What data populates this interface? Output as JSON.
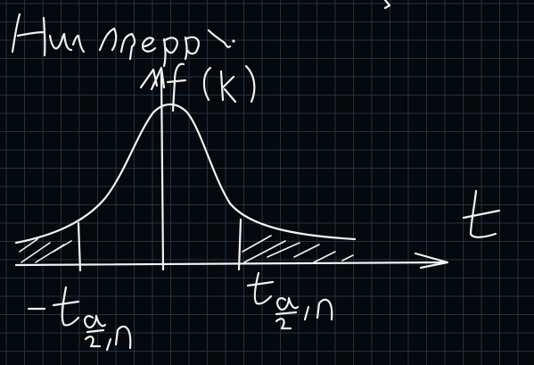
{
  "board": {
    "background": "#05080c",
    "grid_color": "#1d3347",
    "ink_color": "#f2f2f2"
  },
  "heading": "На черт.",
  "axis_label_y": "f(x)",
  "axis_label_x": "t",
  "left_critical_label": {
    "sign": "-",
    "main": "t",
    "sub_top": "α",
    "sub_bottom": "2",
    "sub_tail": ",n"
  },
  "right_critical_label": {
    "main": "t",
    "sub_top": "α",
    "sub_bottom": "2",
    "sub_tail": ",n"
  },
  "stray_mark": "2"
}
